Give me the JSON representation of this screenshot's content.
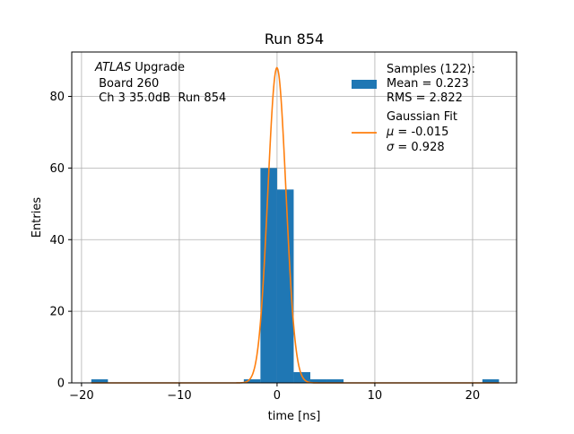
{
  "chart_data": {
    "type": "bar",
    "title": "Run 854",
    "xlabel": "time [ns]",
    "ylabel": "Entries",
    "xlim": [
      -21,
      24.5
    ],
    "ylim": [
      0,
      92.4
    ],
    "grid": true,
    "x_ticks": [
      -20,
      -10,
      0,
      10,
      20
    ],
    "x_tick_labels": [
      "−20",
      "−10",
      "0",
      "10",
      "20"
    ],
    "y_ticks": [
      0,
      20,
      40,
      60,
      80
    ],
    "y_tick_labels": [
      "0",
      "20",
      "40",
      "60",
      "80"
    ],
    "annotation": {
      "experiment": "ATLAS",
      "experiment_suffix": " Upgrade",
      "line2": " Board 260",
      "line3": " Ch 3 35.0dB  Run 854"
    },
    "legend": {
      "position": "top-right",
      "histogram": {
        "label_line1": "Samples (122):",
        "label_line2": "Mean = 0.223",
        "label_line3": "RMS = 2.822",
        "color": "#1f77b4"
      },
      "fit": {
        "label_line1": "Gaussian Fit",
        "mu_label": "μ",
        "mu_value": " = -0.015",
        "sigma_label": "σ",
        "sigma_value": " = 0.928",
        "color": "#ff7f0e"
      }
    },
    "series": [
      {
        "kind": "histogram",
        "bins": [
          {
            "x0": -19.0,
            "x1": -17.3,
            "count": 1
          },
          {
            "x0": -3.4,
            "x1": -1.7,
            "count": 1
          },
          {
            "x0": -1.7,
            "x1": 0.0,
            "count": 60
          },
          {
            "x0": 0.0,
            "x1": 1.7,
            "count": 54
          },
          {
            "x0": 1.7,
            "x1": 3.4,
            "count": 3
          },
          {
            "x0": 3.4,
            "x1": 5.1,
            "count": 1
          },
          {
            "x0": 5.1,
            "x1": 6.8,
            "count": 1
          },
          {
            "x0": 21.0,
            "x1": 22.7,
            "count": 1
          }
        ]
      },
      {
        "kind": "gaussian",
        "amplitude": 88,
        "mu": -0.015,
        "sigma": 0.928,
        "x_range": [
          -19,
          22.7
        ]
      }
    ]
  }
}
